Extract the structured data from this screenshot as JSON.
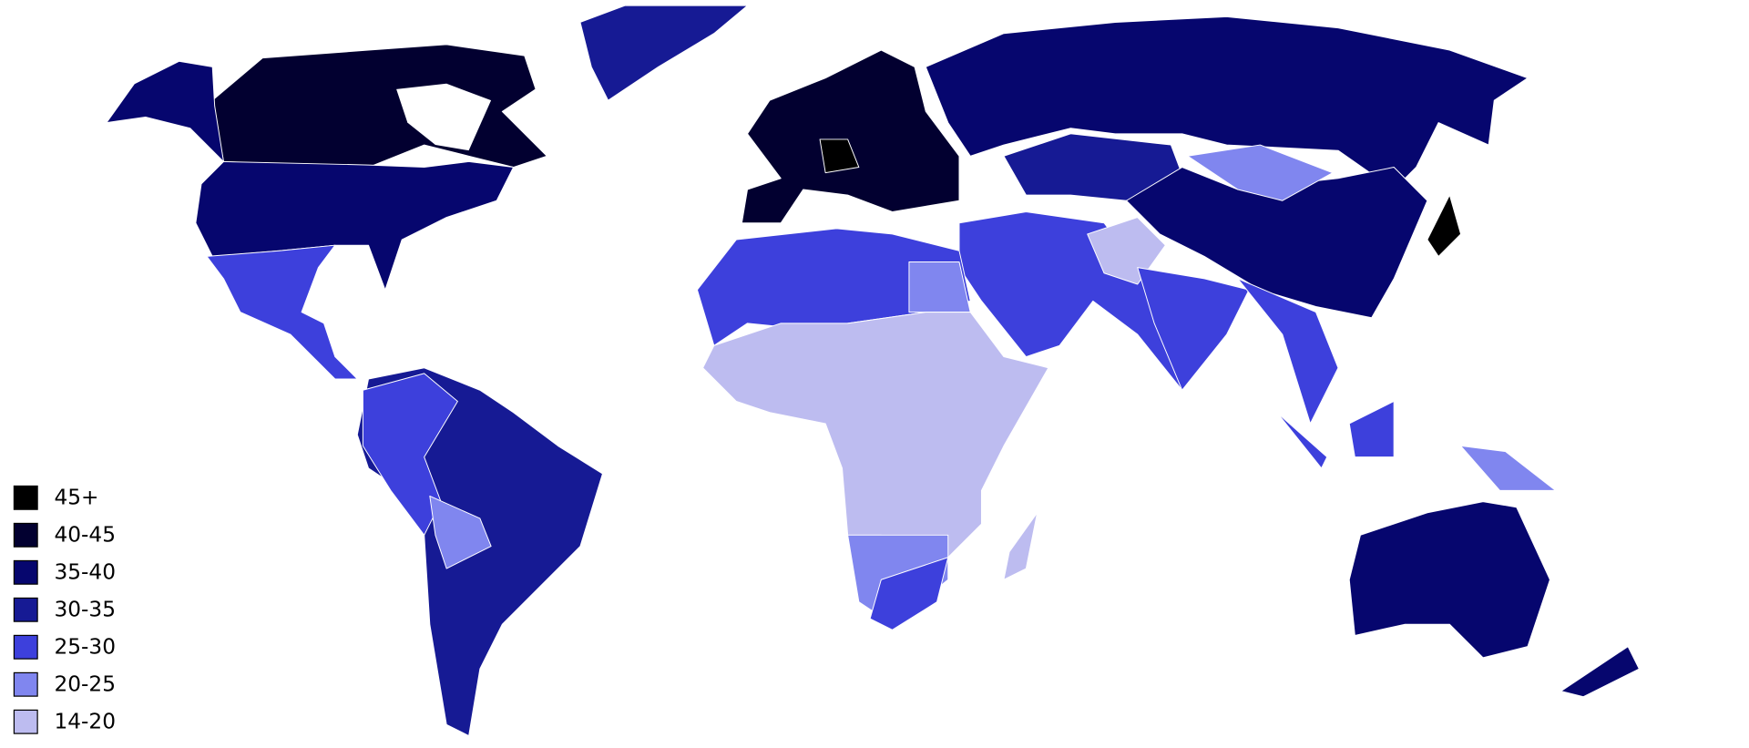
{
  "legend": {
    "items": [
      {
        "label": "45+",
        "color": "#000000"
      },
      {
        "label": "40-45",
        "color": "#020030"
      },
      {
        "label": "35-40",
        "color": "#06066e"
      },
      {
        "label": "30-35",
        "color": "#161a94"
      },
      {
        "label": "25-30",
        "color": "#3d40dc"
      },
      {
        "label": "20-25",
        "color": "#8086ef"
      },
      {
        "label": "14-20",
        "color": "#bdbcf0"
      }
    ]
  }
}
